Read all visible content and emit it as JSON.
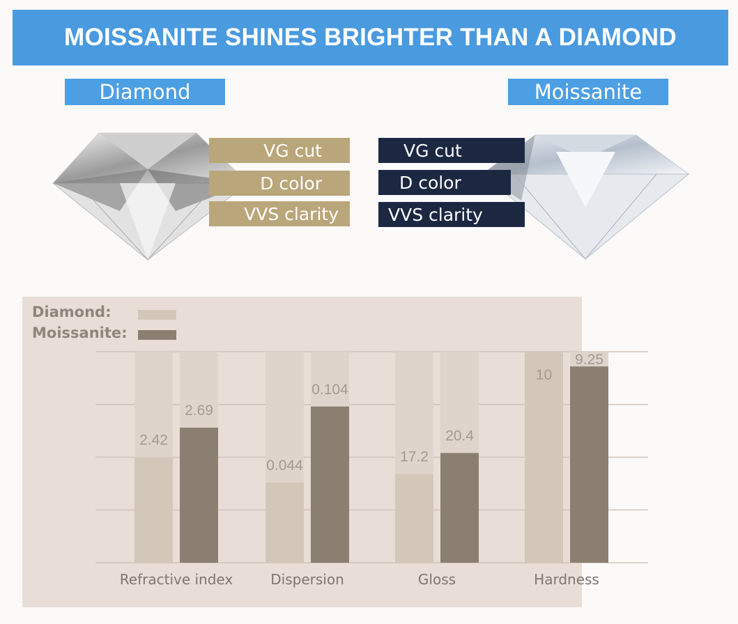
{
  "banner": {
    "title": "MOISSANITE SHINES BRIGHTER THAN A DIAMOND",
    "color": "#4a9ae0"
  },
  "diamond": {
    "name": "Diamond",
    "tags": [
      "VG cut",
      "D color",
      "VVS clarity"
    ],
    "tag_color": "#b9a67a"
  },
  "moissanite": {
    "name": "Moissanite",
    "tags": [
      "VG cut",
      "D color",
      "VVS clarity"
    ],
    "tag_color": "#1c2742"
  },
  "chart_data": {
    "type": "bar",
    "legend": {
      "position": "top-left",
      "entries": [
        "Diamond:",
        "Moissanite:"
      ]
    },
    "categories": [
      "Refractive index",
      "Dispersion",
      "Gloss",
      "Hardness"
    ],
    "series": [
      {
        "name": "Diamond",
        "color": "#d3c7ba",
        "values": [
          2.42,
          0.044,
          17.2,
          10
        ],
        "labels": [
          "2.42",
          "0.044",
          "17.2",
          "10"
        ],
        "fill": [
          0.5,
          0.38,
          0.42,
          1.0
        ]
      },
      {
        "name": "Moissanite",
        "color": "#8a7f70",
        "values": [
          2.69,
          0.104,
          20.4,
          9.25
        ],
        "labels": [
          "2.69",
          "0.104",
          "20.4",
          "9.25"
        ],
        "fill": [
          0.64,
          0.74,
          0.52,
          0.93
        ]
      }
    ],
    "grid": true
  }
}
